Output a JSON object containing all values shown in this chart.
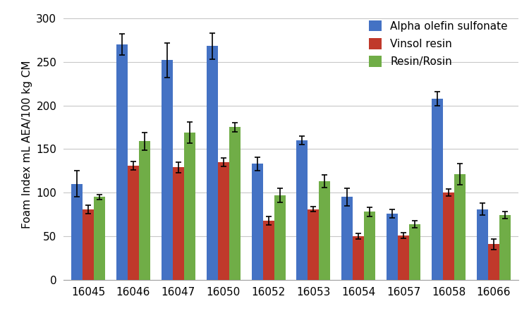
{
  "categories": [
    "16045",
    "16046",
    "16047",
    "16050",
    "16052",
    "16053",
    "16054",
    "16057",
    "16058",
    "16066"
  ],
  "series": [
    {
      "name": "Alpha olefin sulfonate",
      "color": "#4472C4",
      "values": [
        110,
        270,
        252,
        268,
        133,
        160,
        95,
        76,
        208,
        81
      ],
      "errors": [
        15,
        12,
        20,
        15,
        8,
        5,
        10,
        5,
        8,
        7
      ]
    },
    {
      "name": "Vinsol resin",
      "color": "#C0392B",
      "values": [
        81,
        131,
        129,
        135,
        68,
        81,
        50,
        51,
        100,
        41
      ],
      "errors": [
        5,
        5,
        6,
        5,
        5,
        3,
        3,
        3,
        4,
        6
      ]
    },
    {
      "name": "Resin/Rosin",
      "color": "#70AD47",
      "values": [
        95,
        159,
        169,
        175,
        97,
        113,
        78,
        64,
        121,
        74
      ],
      "errors": [
        3,
        10,
        12,
        5,
        8,
        7,
        5,
        4,
        12,
        4
      ]
    }
  ],
  "ylabel": "Foam Index mL AEA/100 kg CM",
  "ylim": [
    0,
    310
  ],
  "yticks": [
    0,
    50,
    100,
    150,
    200,
    250,
    300
  ],
  "legend_loc": "upper right",
  "bar_width": 0.25,
  "figure_size": [
    7.5,
    4.51
  ],
  "dpi": 100,
  "background_color": "#FFFFFF",
  "grid_color": "#C8C8C8",
  "capsize": 3,
  "font_size": 11
}
